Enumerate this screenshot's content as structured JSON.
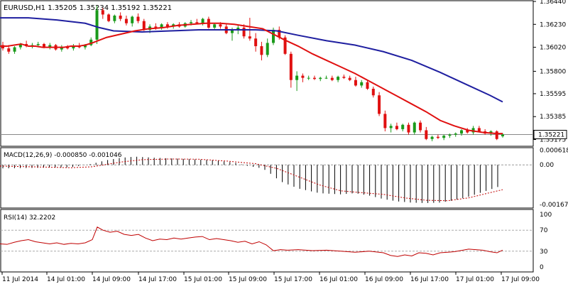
{
  "chart_data": [
    {
      "type": "candlestick",
      "title": "EURUSD,H1  1.35205 1.35234 1.35192 1.35221",
      "ylim": [
        1.3512,
        1.3644
      ],
      "y_ticks": [
        "1.36440",
        "1.36230",
        "1.36020",
        "1.35800",
        "1.35595",
        "1.35385",
        "1.35175"
      ],
      "current_price_label": "1.35221",
      "current_price": 1.35221,
      "x_ticks": [
        "11 Jul 2014",
        "14 Jul 01:00",
        "14 Jul 09:00",
        "14 Jul 17:00",
        "15 Jul 01:00",
        "15 Jul 09:00",
        "15 Jul 17:00",
        "16 Jul 01:00",
        "16 Jul 09:00",
        "16 Jul 17:00",
        "17 Jul 01:00",
        "17 Jul 09:00"
      ],
      "candles": [
        [
          1.3604,
          1.3607,
          1.3599,
          1.3601
        ],
        [
          1.3601,
          1.3604,
          1.3596,
          1.3598
        ],
        [
          1.3598,
          1.3603,
          1.3596,
          1.3602
        ],
        [
          1.3602,
          1.3606,
          1.36,
          1.3605
        ],
        [
          1.3605,
          1.3608,
          1.3602,
          1.3603
        ],
        [
          1.3603,
          1.3606,
          1.3601,
          1.3604
        ],
        [
          1.3604,
          1.3607,
          1.3602,
          1.3605
        ],
        [
          1.3605,
          1.3606,
          1.3601,
          1.3602
        ],
        [
          1.3602,
          1.3606,
          1.36,
          1.3604
        ],
        [
          1.3604,
          1.3605,
          1.3599,
          1.36
        ],
        [
          1.36,
          1.3604,
          1.3598,
          1.3602
        ],
        [
          1.3602,
          1.3604,
          1.36,
          1.3601
        ],
        [
          1.3601,
          1.3605,
          1.3599,
          1.3603
        ],
        [
          1.3603,
          1.3606,
          1.3601,
          1.3602
        ],
        [
          1.3602,
          1.3605,
          1.36,
          1.3604
        ],
        [
          1.3604,
          1.3611,
          1.3603,
          1.3609
        ],
        [
          1.3609,
          1.364,
          1.3605,
          1.3636
        ],
        [
          1.3636,
          1.3638,
          1.3628,
          1.3632
        ],
        [
          1.3632,
          1.3633,
          1.3625,
          1.3626
        ],
        [
          1.3626,
          1.3632,
          1.3624,
          1.3631
        ],
        [
          1.3631,
          1.3634,
          1.3626,
          1.3628
        ],
        [
          1.3628,
          1.3631,
          1.3622,
          1.3624
        ],
        [
          1.3624,
          1.3631,
          1.3621,
          1.363
        ],
        [
          1.363,
          1.3633,
          1.3624,
          1.3626
        ],
        [
          1.3626,
          1.3628,
          1.3617,
          1.3618
        ],
        [
          1.3618,
          1.3623,
          1.3615,
          1.3621
        ],
        [
          1.3621,
          1.3624,
          1.3618,
          1.362
        ],
        [
          1.362,
          1.3624,
          1.3618,
          1.3623
        ],
        [
          1.3623,
          1.3625,
          1.3619,
          1.3621
        ],
        [
          1.3621,
          1.3624,
          1.3619,
          1.3623
        ],
        [
          1.3623,
          1.3625,
          1.362,
          1.3621
        ],
        [
          1.3621,
          1.3625,
          1.362,
          1.3624
        ],
        [
          1.3624,
          1.3627,
          1.3622,
          1.3625
        ],
        [
          1.3625,
          1.3628,
          1.3623,
          1.3624
        ],
        [
          1.3624,
          1.3629,
          1.3622,
          1.3628
        ],
        [
          1.3628,
          1.363,
          1.3619,
          1.362
        ],
        [
          1.362,
          1.3624,
          1.3618,
          1.3623
        ],
        [
          1.3623,
          1.3625,
          1.3619,
          1.3621
        ],
        [
          1.3621,
          1.3623,
          1.3614,
          1.3615
        ],
        [
          1.3615,
          1.362,
          1.3608,
          1.3618
        ],
        [
          1.3618,
          1.3622,
          1.3614,
          1.362
        ],
        [
          1.362,
          1.3623,
          1.361,
          1.3612
        ],
        [
          1.3612,
          1.3629,
          1.3608,
          1.361
        ],
        [
          1.361,
          1.3615,
          1.3598,
          1.3603
        ],
        [
          1.3603,
          1.3607,
          1.359,
          1.3595
        ],
        [
          1.3595,
          1.361,
          1.3593,
          1.3606
        ],
        [
          1.3606,
          1.362,
          1.3604,
          1.3618
        ],
        [
          1.3618,
          1.3621,
          1.3609,
          1.3611
        ],
        [
          1.3611,
          1.3613,
          1.3595,
          1.3596
        ],
        [
          1.3596,
          1.3598,
          1.3565,
          1.3572
        ],
        [
          1.3572,
          1.358,
          1.3562,
          1.3576
        ],
        [
          1.3576,
          1.3578,
          1.357,
          1.3574
        ],
        [
          1.3574,
          1.3576,
          1.3572,
          1.3574
        ],
        [
          1.3574,
          1.3576,
          1.3572,
          1.3573
        ],
        [
          1.3573,
          1.3575,
          1.3571,
          1.3574
        ],
        [
          1.3574,
          1.3576,
          1.3573,
          1.3574
        ],
        [
          1.3574,
          1.3576,
          1.3571,
          1.3572
        ],
        [
          1.3572,
          1.3576,
          1.357,
          1.3575
        ],
        [
          1.3575,
          1.3577,
          1.3573,
          1.3574
        ],
        [
          1.3574,
          1.3576,
          1.3571,
          1.3572
        ],
        [
          1.3572,
          1.3575,
          1.3566,
          1.3567
        ],
        [
          1.3567,
          1.3572,
          1.3565,
          1.357
        ],
        [
          1.357,
          1.3572,
          1.3563,
          1.3564
        ],
        [
          1.3564,
          1.3566,
          1.3556,
          1.3558
        ],
        [
          1.3558,
          1.3561,
          1.3539,
          1.3541
        ],
        [
          1.3541,
          1.3544,
          1.3525,
          1.3528
        ],
        [
          1.3528,
          1.3532,
          1.3524,
          1.353
        ],
        [
          1.353,
          1.3533,
          1.3526,
          1.3527
        ],
        [
          1.3527,
          1.3532,
          1.3525,
          1.3531
        ],
        [
          1.3531,
          1.3533,
          1.3522,
          1.3524
        ],
        [
          1.3524,
          1.3534,
          1.3522,
          1.3533
        ],
        [
          1.3533,
          1.3535,
          1.3524,
          1.3526
        ],
        [
          1.3526,
          1.3529,
          1.3517,
          1.3518
        ],
        [
          1.3518,
          1.3521,
          1.3516,
          1.352
        ],
        [
          1.352,
          1.3522,
          1.3518,
          1.3519
        ],
        [
          1.3519,
          1.3522,
          1.3517,
          1.3521
        ],
        [
          1.3521,
          1.3523,
          1.3519,
          1.3522
        ],
        [
          1.3522,
          1.3524,
          1.352,
          1.3523
        ],
        [
          1.3523,
          1.3527,
          1.3521,
          1.3526
        ],
        [
          1.3526,
          1.3528,
          1.3523,
          1.3524
        ],
        [
          1.3524,
          1.353,
          1.3522,
          1.3528
        ],
        [
          1.3528,
          1.353,
          1.3524,
          1.3525
        ],
        [
          1.3525,
          1.3527,
          1.3522,
          1.3523
        ],
        [
          1.3523,
          1.3526,
          1.3521,
          1.3525
        ],
        [
          1.3525,
          1.3526,
          1.3517,
          1.3518
        ],
        [
          1.35205,
          1.35234,
          1.35192,
          1.35221
        ]
      ],
      "series": [
        {
          "values": [
            [
              0,
              1.3603
            ],
            [
              10,
              1.3603
            ],
            [
              20,
              1.3604
            ],
            [
              30,
              1.3605
            ],
            [
              40,
              1.3603
            ],
            [
              50,
              1.3603
            ],
            [
              60,
              1.3602
            ],
            [
              70,
              1.3602
            ],
            [
              80,
              1.3602
            ],
            [
              90,
              1.3602
            ],
            [
              100,
              1.3603
            ],
            [
              110,
              1.3603
            ],
            [
              120,
              1.3604
            ],
            [
              130,
              1.3606
            ],
            [
              150,
              1.3611
            ],
            [
              170,
              1.3614
            ],
            [
              190,
              1.3617
            ],
            [
              210,
              1.3619
            ],
            [
              230,
              1.362
            ],
            [
              250,
              1.3622
            ],
            [
              270,
              1.3623
            ],
            [
              290,
              1.3624
            ],
            [
              310,
              1.3624
            ],
            [
              330,
              1.3623
            ],
            [
              350,
              1.3621
            ],
            [
              370,
              1.3619
            ],
            [
              385,
              1.3614
            ],
            [
              400,
              1.3609
            ],
            [
              420,
              1.3603
            ],
            [
              440,
              1.3596
            ],
            [
              460,
              1.359
            ],
            [
              480,
              1.3584
            ],
            [
              500,
              1.3578
            ],
            [
              520,
              1.3571
            ],
            [
              540,
              1.3564
            ],
            [
              560,
              1.3557
            ],
            [
              580,
              1.355
            ],
            [
              600,
              1.3543
            ],
            [
              620,
              1.3535
            ],
            [
              640,
              1.353
            ],
            [
              660,
              1.3526
            ],
            [
              680,
              1.3524
            ],
            [
              700,
              1.3523
            ],
            [
              708,
              1.3523
            ]
          ]
        },
        {
          "values": [
            [
              0,
              1.3629
            ],
            [
              40,
              1.3629
            ],
            [
              80,
              1.3627
            ],
            [
              120,
              1.3624
            ],
            [
              140,
              1.362
            ],
            [
              160,
              1.3617
            ],
            [
              200,
              1.3616
            ],
            [
              240,
              1.3617
            ],
            [
              280,
              1.3618
            ],
            [
              320,
              1.3618
            ],
            [
              360,
              1.3618
            ],
            [
              390,
              1.3617
            ],
            [
              420,
              1.3613
            ],
            [
              460,
              1.3608
            ],
            [
              500,
              1.3604
            ],
            [
              540,
              1.3598
            ],
            [
              580,
              1.359
            ],
            [
              620,
              1.3579
            ],
            [
              660,
              1.3567
            ],
            [
              690,
              1.3558
            ],
            [
              708,
              1.3552
            ]
          ]
        }
      ]
    },
    {
      "type": "histogram",
      "title": "MACD(12,26,9) -0.000850 -0.001046",
      "ylim": [
        -0.0018,
        0.0007
      ],
      "y_ticks": [
        "0.000618",
        "0.00",
        "-0.001672"
      ],
      "histogram": [
        [
          0,
          -0.00015
        ],
        [
          100,
          -0.0001
        ],
        [
          130,
          5e-05
        ],
        [
          150,
          0.0002
        ],
        [
          170,
          0.0003
        ],
        [
          190,
          0.00035
        ],
        [
          220,
          0.0003
        ],
        [
          260,
          0.00025
        ],
        [
          300,
          0.0002
        ],
        [
          330,
          0.0001
        ],
        [
          350,
          -5e-05
        ],
        [
          370,
          -0.00015
        ],
        [
          380,
          -0.00035
        ],
        [
          395,
          -0.0007
        ],
        [
          420,
          -0.001
        ],
        [
          450,
          -0.0012
        ],
        [
          480,
          -0.00125
        ],
        [
          500,
          -0.0012
        ],
        [
          520,
          -0.0013
        ],
        [
          540,
          -0.00145
        ],
        [
          560,
          -0.00155
        ],
        [
          580,
          -0.0016
        ],
        [
          600,
          -0.00162
        ],
        [
          620,
          -0.0016
        ],
        [
          640,
          -0.0015
        ],
        [
          660,
          -0.00135
        ],
        [
          680,
          -0.00115
        ],
        [
          700,
          -0.00095
        ],
        [
          708,
          -0.00085
        ]
      ],
      "signal": [
        [
          0,
          -5e-05
        ],
        [
          100,
          -0.00012
        ],
        [
          130,
          -8e-05
        ],
        [
          150,
          2e-05
        ],
        [
          170,
          0.00012
        ],
        [
          200,
          0.00022
        ],
        [
          240,
          0.00025
        ],
        [
          280,
          0.00024
        ],
        [
          320,
          0.00016
        ],
        [
          360,
          5e-05
        ],
        [
          390,
          -0.00015
        ],
        [
          420,
          -0.0005
        ],
        [
          450,
          -0.00085
        ],
        [
          480,
          -0.0011
        ],
        [
          510,
          -0.00118
        ],
        [
          540,
          -0.00125
        ],
        [
          570,
          -0.0014
        ],
        [
          600,
          -0.0015
        ],
        [
          630,
          -0.00152
        ],
        [
          660,
          -0.0014
        ],
        [
          690,
          -0.00118
        ],
        [
          708,
          -0.00105
        ]
      ]
    },
    {
      "type": "line",
      "title": "RSI(14) 32.2202",
      "ylim": [
        0,
        100
      ],
      "y_ticks": [
        "100",
        "70",
        "30",
        "0"
      ],
      "levels": [
        70,
        30
      ],
      "x_labels": [
        "11 Jul 2014",
        "14 Jul 01:00",
        "14 Jul 09:00",
        "14 Jul 17:00",
        "15 Jul 01:00",
        "15 Jul 09:00",
        "15 Jul 17:00",
        "16 Jul 01:00",
        "16 Jul 09:00",
        "16 Jul 17:00",
        "17 Jul 01:00",
        "17 Jul 09:00"
      ],
      "values": [
        [
          0,
          44
        ],
        [
          10,
          43
        ],
        [
          20,
          47
        ],
        [
          30,
          50
        ],
        [
          40,
          52
        ],
        [
          50,
          48
        ],
        [
          60,
          46
        ],
        [
          70,
          44
        ],
        [
          80,
          46
        ],
        [
          90,
          43
        ],
        [
          100,
          45
        ],
        [
          110,
          44
        ],
        [
          120,
          46
        ],
        [
          130,
          52
        ],
        [
          137,
          76
        ],
        [
          145,
          70
        ],
        [
          155,
          66
        ],
        [
          165,
          68
        ],
        [
          175,
          62
        ],
        [
          185,
          60
        ],
        [
          195,
          62
        ],
        [
          205,
          55
        ],
        [
          215,
          50
        ],
        [
          225,
          53
        ],
        [
          235,
          52
        ],
        [
          245,
          55
        ],
        [
          255,
          53
        ],
        [
          265,
          55
        ],
        [
          275,
          57
        ],
        [
          285,
          58
        ],
        [
          295,
          52
        ],
        [
          305,
          54
        ],
        [
          315,
          52
        ],
        [
          325,
          50
        ],
        [
          335,
          47
        ],
        [
          345,
          49
        ],
        [
          355,
          44
        ],
        [
          365,
          48
        ],
        [
          375,
          42
        ],
        [
          385,
          31
        ],
        [
          395,
          33
        ],
        [
          405,
          32
        ],
        [
          420,
          33
        ],
        [
          440,
          31
        ],
        [
          460,
          32
        ],
        [
          480,
          30
        ],
        [
          500,
          28
        ],
        [
          520,
          30
        ],
        [
          540,
          27
        ],
        [
          550,
          22
        ],
        [
          560,
          20
        ],
        [
          570,
          23
        ],
        [
          580,
          21
        ],
        [
          590,
          27
        ],
        [
          600,
          26
        ],
        [
          610,
          23
        ],
        [
          620,
          27
        ],
        [
          640,
          29
        ],
        [
          660,
          34
        ],
        [
          670,
          33
        ],
        [
          680,
          32
        ],
        [
          690,
          29
        ],
        [
          700,
          27
        ],
        [
          708,
          32
        ]
      ]
    }
  ]
}
